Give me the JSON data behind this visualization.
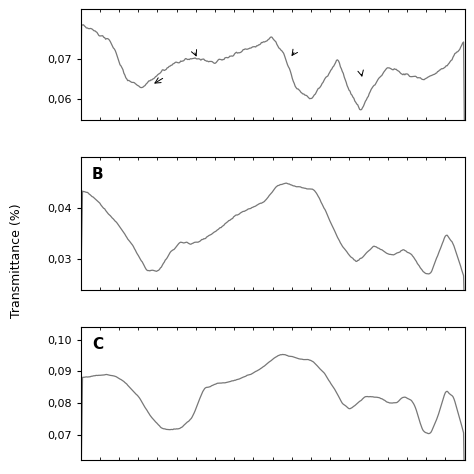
{
  "background_color": "#ffffff",
  "line_color": "#777777",
  "line_width": 0.9,
  "panel_A": {
    "ylim": [
      0.055,
      0.082
    ],
    "yticks": [
      0.06,
      0.07
    ],
    "yticklabels": [
      "0,06",
      "0,07"
    ]
  },
  "panel_B": {
    "label": "B",
    "ylim": [
      0.024,
      0.05
    ],
    "yticks": [
      0.03,
      0.04
    ],
    "yticklabels": [
      "0,03",
      "0,04"
    ]
  },
  "panel_C": {
    "label": "C",
    "ylim": [
      0.062,
      0.104
    ],
    "yticks": [
      0.07,
      0.08,
      0.09,
      0.1
    ],
    "yticklabels": [
      "0,07",
      "0,08",
      "0,09",
      "0,10"
    ]
  },
  "ylabel": "Transmittance (%)",
  "tick_fontsize": 8,
  "label_fontsize": 9
}
